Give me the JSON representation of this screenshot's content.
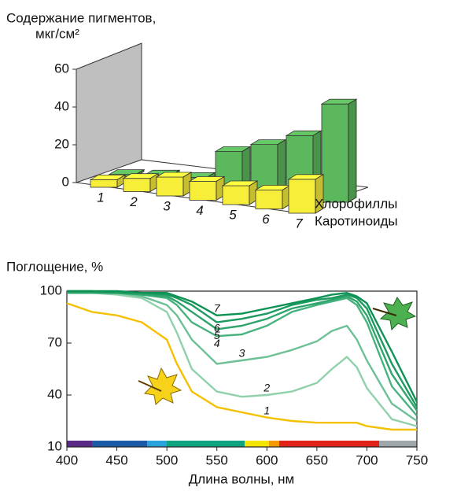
{
  "chart_data": [
    {
      "type": "bar3d",
      "ylabel": [
        "Содержание пигментов,",
        "мкг/см²"
      ],
      "categories": [
        "1",
        "2",
        "3",
        "4",
        "5",
        "6",
        "7"
      ],
      "series": [
        {
          "name": "Хлорофиллы",
          "color": "#5cb85c",
          "values": [
            1,
            3,
            4,
            20,
            26,
            33,
            52
          ]
        },
        {
          "name": "Каротиноиды",
          "color": "#f7ee3a",
          "values": [
            4,
            7,
            10,
            10,
            10,
            10,
            18
          ]
        }
      ],
      "ylim": [
        0,
        60
      ],
      "yticks": [
        0,
        20,
        40,
        60
      ]
    },
    {
      "type": "line",
      "ylabel": "Поглощение, %",
      "xlabel": "Длина волны, нм",
      "x": [
        400,
        425,
        450,
        475,
        500,
        510,
        525,
        550,
        575,
        600,
        625,
        650,
        665,
        680,
        690,
        700,
        725,
        750
      ],
      "series": [
        {
          "name": "1",
          "color": "#f5c000",
          "values": [
            93,
            88,
            86,
            82,
            72,
            58,
            42,
            33,
            30,
            27,
            25,
            24,
            24,
            24,
            24,
            22,
            20,
            20
          ]
        },
        {
          "name": "2",
          "color": "#90d1ac",
          "values": [
            99,
            99,
            98,
            96,
            88,
            76,
            55,
            42,
            39,
            40,
            42,
            47,
            55,
            62,
            56,
            44,
            26,
            22
          ]
        },
        {
          "name": "3",
          "color": "#6cc095",
          "values": [
            99,
            99,
            99,
            97,
            92,
            86,
            72,
            58,
            60,
            62,
            66,
            71,
            77,
            80,
            72,
            60,
            35,
            25
          ]
        },
        {
          "name": "4",
          "color": "#46b27e",
          "values": [
            99,
            99,
            99,
            98,
            96,
            92,
            82,
            74,
            75,
            80,
            88,
            92,
            94,
            96,
            92,
            82,
            45,
            28
          ]
        },
        {
          "name": "5",
          "color": "#2fa56d",
          "values": [
            99,
            99,
            99,
            98,
            97,
            94,
            88,
            78,
            80,
            84,
            90,
            93,
            95,
            97,
            94,
            86,
            52,
            31
          ]
        },
        {
          "name": "6",
          "color": "#1c9a5f",
          "values": [
            100,
            100,
            99,
            99,
            98,
            96,
            92,
            82,
            84,
            87,
            92,
            95,
            96,
            98,
            96,
            90,
            58,
            33
          ]
        },
        {
          "name": "7",
          "color": "#0d9254",
          "values": [
            100,
            100,
            100,
            99,
            99,
            97,
            94,
            86,
            87,
            90,
            93,
            96,
            98,
            99,
            97,
            93,
            65,
            36
          ]
        }
      ],
      "xlim": [
        400,
        750
      ],
      "xticks": [
        400,
        450,
        500,
        550,
        600,
        650,
        700,
        750
      ],
      "ylim": [
        10,
        100
      ],
      "yticks": [
        10,
        40,
        70,
        100
      ]
    }
  ]
}
